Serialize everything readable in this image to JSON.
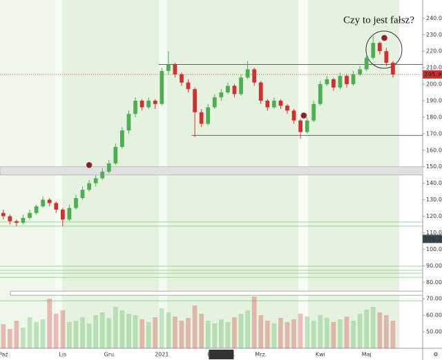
{
  "chart_data": {
    "type": "candlestick",
    "up_color": "#4caf50",
    "down_color": "#d32f2f",
    "ylim": [
      40,
      251
    ],
    "xlim": [
      -0.5,
      63.5
    ],
    "yticks": [
      {
        "value": 240,
        "label": "240.000"
      },
      {
        "value": 230,
        "label": "230.000"
      },
      {
        "value": 220,
        "label": "220.000"
      },
      {
        "value": 210,
        "label": "210.000"
      },
      {
        "value": 200,
        "label": "200.000"
      },
      {
        "value": 190,
        "label": "190.000"
      },
      {
        "value": 180,
        "label": "180.000"
      },
      {
        "value": 170,
        "label": "170.000"
      },
      {
        "value": 160,
        "label": "160.000"
      },
      {
        "value": 150,
        "label": "150.000"
      },
      {
        "value": 140,
        "label": "140.000"
      },
      {
        "value": 130,
        "label": "130.000"
      },
      {
        "value": 120,
        "label": "120.000"
      },
      {
        "value": 110,
        "label": "110.000"
      },
      {
        "value": 100,
        "label": "100.000"
      },
      {
        "value": 90,
        "label": "90.000"
      },
      {
        "value": 80,
        "label": "80.000"
      },
      {
        "value": 70,
        "label": "70.000"
      },
      {
        "value": 60,
        "label": "60.000"
      },
      {
        "value": 50,
        "label": "50.000"
      }
    ],
    "xticks": [
      {
        "value": 0,
        "label": "Paź"
      },
      {
        "value": 9,
        "label": "Lis"
      },
      {
        "value": 16,
        "label": "Gru"
      },
      {
        "value": 24,
        "label": "2021"
      },
      {
        "value": 33,
        "label": "05 Lut '21"
      },
      {
        "value": 39,
        "label": "Mrz."
      },
      {
        "value": 48,
        "label": "Kwi"
      },
      {
        "value": 55,
        "label": "Maj"
      }
    ],
    "ohlc": [
      [
        122,
        124,
        118,
        120
      ],
      [
        120,
        121,
        115,
        117
      ],
      [
        117,
        118,
        114,
        116
      ],
      [
        116,
        121,
        115,
        119
      ],
      [
        119,
        124,
        118,
        122
      ],
      [
        122,
        127,
        121,
        126
      ],
      [
        126,
        132,
        125,
        130
      ],
      [
        130,
        131,
        126,
        128
      ],
      [
        128,
        129,
        122,
        124
      ],
      [
        124,
        125,
        114,
        118
      ],
      [
        118,
        127,
        117,
        125
      ],
      [
        125,
        133,
        124,
        131
      ],
      [
        131,
        138,
        130,
        136
      ],
      [
        136,
        142,
        135,
        140
      ],
      [
        140,
        145,
        138,
        143
      ],
      [
        143,
        149,
        142,
        147
      ],
      [
        147,
        154,
        146,
        152
      ],
      [
        152,
        164,
        151,
        162
      ],
      [
        162,
        174,
        161,
        172
      ],
      [
        172,
        184,
        170,
        182
      ],
      [
        182,
        192,
        180,
        190
      ],
      [
        190,
        191,
        184,
        186
      ],
      [
        186,
        192,
        185,
        190
      ],
      [
        190,
        191,
        185,
        188
      ],
      [
        188,
        210,
        187,
        208
      ],
      [
        208,
        220,
        206,
        212
      ],
      [
        212,
        213,
        204,
        206
      ],
      [
        206,
        207,
        199,
        201
      ],
      [
        201,
        203,
        195,
        197
      ],
      [
        197,
        198,
        168,
        183
      ],
      [
        183,
        185,
        174,
        176
      ],
      [
        176,
        188,
        175,
        186
      ],
      [
        186,
        194,
        185,
        192
      ],
      [
        192,
        197,
        190,
        195
      ],
      [
        195,
        201,
        194,
        199
      ],
      [
        199,
        200,
        192,
        194
      ],
      [
        194,
        206,
        193,
        204
      ],
      [
        204,
        214,
        203,
        209
      ],
      [
        209,
        210,
        199,
        201
      ],
      [
        201,
        202,
        188,
        190
      ],
      [
        190,
        191,
        184,
        186
      ],
      [
        186,
        192,
        185,
        190
      ],
      [
        190,
        191,
        185,
        187
      ],
      [
        187,
        188,
        182,
        184
      ],
      [
        184,
        185,
        176,
        178
      ],
      [
        178,
        179,
        167,
        171
      ],
      [
        171,
        180,
        170,
        178
      ],
      [
        178,
        190,
        177,
        188
      ],
      [
        188,
        202,
        187,
        200
      ],
      [
        200,
        205,
        199,
        203
      ],
      [
        203,
        204,
        196,
        198
      ],
      [
        198,
        207,
        197,
        205
      ],
      [
        205,
        206,
        198,
        200
      ],
      [
        200,
        208,
        199,
        206
      ],
      [
        206,
        211,
        205,
        209
      ],
      [
        209,
        218,
        208,
        216
      ],
      [
        216,
        229,
        215,
        225
      ],
      [
        225,
        226,
        218,
        220
      ],
      [
        220,
        222,
        211,
        213
      ],
      [
        213,
        214,
        204,
        205.9
      ]
    ],
    "volume": [
      35,
      28,
      40,
      30,
      45,
      38,
      42,
      72,
      50,
      55,
      38,
      40,
      45,
      36,
      48,
      52,
      44,
      60,
      55,
      50,
      48,
      42,
      38,
      45,
      58,
      52,
      46,
      40,
      44,
      62,
      50,
      40,
      36,
      42,
      38,
      45,
      50,
      55,
      75,
      48,
      40,
      36,
      44,
      38,
      42,
      50,
      46,
      40,
      48,
      44,
      38,
      42,
      46,
      40,
      50,
      56,
      60,
      52,
      48,
      40
    ],
    "levels": [
      {
        "value": 212,
        "from": 24
      },
      {
        "value": 169,
        "from": 29
      }
    ],
    "zone": [
      145,
      150
    ],
    "green_lines": [
      116.5,
      114,
      89.7,
      87.2,
      85.5,
      83,
      68.8
    ],
    "gray_box": [
      72.1,
      74.6
    ],
    "markers": [
      {
        "label": "R",
        "x": 13,
        "y": 151
      },
      {
        "label": "R",
        "x": 45.5,
        "y": 181
      },
      {
        "label": "R",
        "x": 57.7,
        "y": 228
      }
    ],
    "annotation": "Czy to jest fałsz?",
    "last_price": {
      "value": 205.9,
      "label": "205.900"
    },
    "marker_price": {
      "value": 106.27,
      "label": "106.270"
    }
  }
}
